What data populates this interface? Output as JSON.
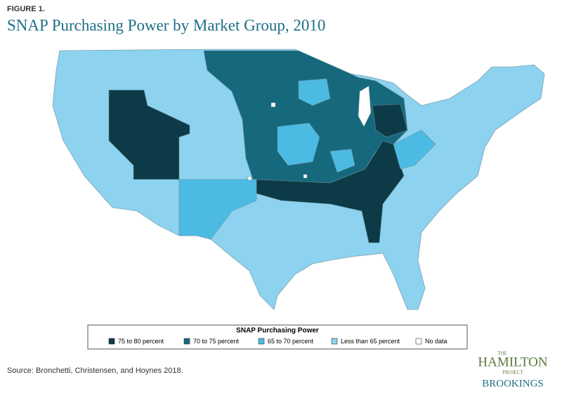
{
  "figure_label": "FIGURE 1.",
  "title": "SNAP Purchasing Power by Market Group, 2010",
  "legend": {
    "title": "SNAP Purchasing Power",
    "items": [
      {
        "label": "75 to 80 percent",
        "color": "#0c3b47"
      },
      {
        "label": "70 to 75 percent",
        "color": "#16687c"
      },
      {
        "label": "65 to 70 percent",
        "color": "#4cbbe3"
      },
      {
        "label": "Less than 65 percent",
        "color": "#8dd2ee"
      },
      {
        "label": "No data",
        "color": "#ffffff"
      }
    ]
  },
  "source": "Source: Bronchetti, Christensen, and Hoynes 2018.",
  "logo": {
    "the": "THE",
    "hamilton": "HAMILTON",
    "project": "PROJECT",
    "brookings": "BROOKINGS"
  }
}
